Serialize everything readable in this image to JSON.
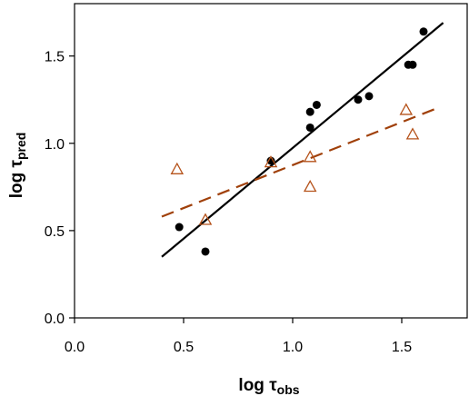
{
  "chart_data": {
    "type": "scatter",
    "xlabel": {
      "main": "log τ",
      "sub": "obs"
    },
    "ylabel": {
      "main": "log τ",
      "sub": "pred"
    },
    "xlim": [
      0.0,
      1.8
    ],
    "ylim": [
      0.0,
      1.8
    ],
    "xticks": [
      {
        "value": 0.0,
        "label": "0.0"
      },
      {
        "value": 0.5,
        "label": "0.5"
      },
      {
        "value": 1.0,
        "label": "1.0"
      },
      {
        "value": 1.5,
        "label": "1.5"
      }
    ],
    "yticks": [
      {
        "value": 0.0,
        "label": "0.0"
      },
      {
        "value": 0.5,
        "label": "0.5"
      },
      {
        "value": 1.0,
        "label": "1.0"
      },
      {
        "value": 1.5,
        "label": "1.5"
      }
    ],
    "grid": false,
    "legend": "none",
    "series": [
      {
        "marker": "filled-circle",
        "color": "#000000",
        "points": [
          [
            0.48,
            0.52
          ],
          [
            0.6,
            0.38
          ],
          [
            0.9,
            0.9
          ],
          [
            1.08,
            1.18
          ],
          [
            1.08,
            1.09
          ],
          [
            1.11,
            1.22
          ],
          [
            1.3,
            1.25
          ],
          [
            1.35,
            1.27
          ],
          [
            1.53,
            1.45
          ],
          [
            1.55,
            1.45
          ],
          [
            1.6,
            1.64
          ]
        ],
        "fit_line": {
          "style": "solid",
          "color": "#000000",
          "from": [
            0.4,
            0.35
          ],
          "to": [
            1.69,
            1.69
          ]
        }
      },
      {
        "marker": "open-triangle",
        "color": "#b5521a",
        "points": [
          [
            0.47,
            0.85
          ],
          [
            0.6,
            0.56
          ],
          [
            0.9,
            0.89
          ],
          [
            1.08,
            0.92
          ],
          [
            1.08,
            0.75
          ],
          [
            1.52,
            1.19
          ],
          [
            1.55,
            1.05
          ]
        ],
        "fit_line": {
          "style": "dashed",
          "color": "#a0400a",
          "from": [
            0.4,
            0.58
          ],
          "to": [
            1.66,
            1.2
          ]
        }
      }
    ]
  }
}
